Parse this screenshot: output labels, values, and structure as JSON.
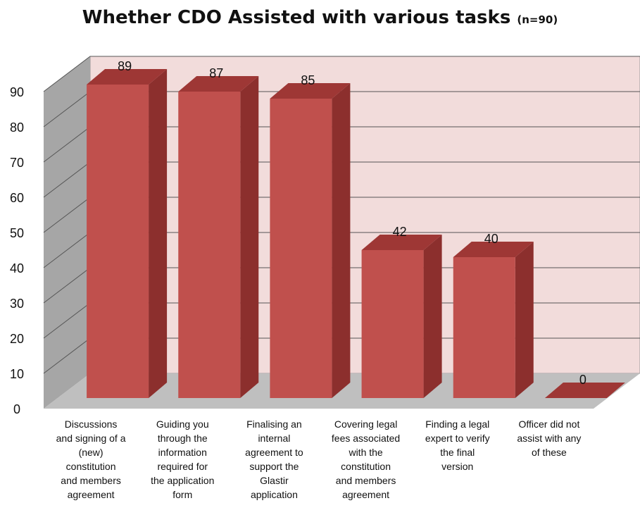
{
  "chart_data": {
    "type": "bar",
    "title": "Whether CDO Assisted with various tasks",
    "subtitle": "(n=90)",
    "categories": [
      "Discussions and signing of a (new) constitution and members agreement",
      "Guiding you through the information required for the application form",
      "Finalising an internal agreement to support the Glastir application",
      "Covering legal fees associated with the constitution and members agreement",
      "Finding a legal expert to verify the final version",
      "Officer did not assist with any of these"
    ],
    "category_lines": [
      [
        "Discussions",
        "and signing of a",
        "(new)",
        "constitution",
        "and members",
        "agreement"
      ],
      [
        "Guiding you",
        "through the",
        "information",
        "required for",
        "the application",
        "form"
      ],
      [
        "Finalising an",
        "internal",
        "agreement to",
        "support the",
        "Glastir",
        "application"
      ],
      [
        "Covering legal",
        "fees associated",
        "with the",
        "constitution",
        "and members",
        "agreement"
      ],
      [
        "Finding a legal",
        "expert to verify",
        "the final",
        "version"
      ],
      [
        "Officer did not",
        "assist with any",
        "of these"
      ]
    ],
    "values": [
      89,
      87,
      85,
      42,
      40,
      0
    ],
    "yticks": [
      0,
      10,
      20,
      30,
      40,
      50,
      60,
      70,
      80,
      90
    ],
    "ylim": [
      0,
      90
    ],
    "xlabel": "",
    "ylabel": "",
    "grid": true,
    "legend": "none",
    "style": "3d-column",
    "colors": {
      "bar_front": "#c0504d",
      "bar_side": "#8c2f2d",
      "bar_top": "#9e3735",
      "back_wall": "#f2dcdb",
      "side_wall": "#a6a6a6",
      "floor": "#bfbfbf",
      "grid": "#555555"
    }
  }
}
